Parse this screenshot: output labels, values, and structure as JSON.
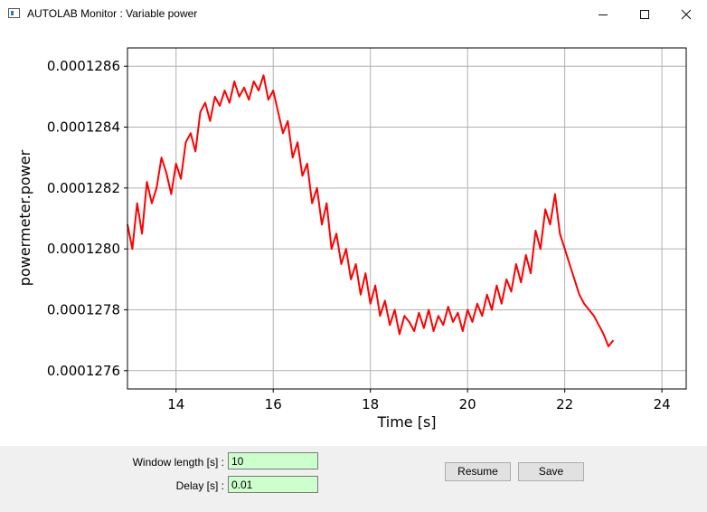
{
  "window": {
    "title": "AUTOLAB Monitor : Variable power",
    "minimize_icon": "minimize-icon",
    "maximize_icon": "maximize-icon",
    "close_icon": "close-icon"
  },
  "chart_data": {
    "type": "line",
    "title": "",
    "xlabel": "Time [s]",
    "ylabel": "powermeter.power",
    "xlim": [
      13,
      24.5
    ],
    "ylim": [
      0.00012754,
      0.00012866
    ],
    "xticks": [
      14,
      16,
      18,
      20,
      22,
      24
    ],
    "xtick_labels": [
      "14",
      "16",
      "18",
      "20",
      "22",
      "24"
    ],
    "yticks": [
      0.0001276,
      0.0001278,
      0.000128,
      0.0001282,
      0.0001284,
      0.0001286
    ],
    "ytick_labels": [
      "0.0001276",
      "0.0001278",
      "0.0001280",
      "0.0001282",
      "0.0001284",
      "0.0001286"
    ],
    "grid": true,
    "line_color": "#ff0000",
    "series": [
      {
        "x": [
          13.0,
          13.1,
          13.2,
          13.3,
          13.4,
          13.5,
          13.6,
          13.7,
          13.8,
          13.9,
          14.0,
          14.1,
          14.2,
          14.3,
          14.4,
          14.5,
          14.6,
          14.7,
          14.8,
          14.9,
          15.0,
          15.1,
          15.2,
          15.3,
          15.4,
          15.5,
          15.6,
          15.7,
          15.8,
          15.9,
          16.0,
          16.1,
          16.2,
          16.3,
          16.4,
          16.5,
          16.6,
          16.7,
          16.8,
          16.9,
          17.0,
          17.1,
          17.2,
          17.3,
          17.4,
          17.5,
          17.6,
          17.7,
          17.8,
          17.9,
          18.0,
          18.1,
          18.2,
          18.3,
          18.4,
          18.5,
          18.6,
          18.7,
          18.8,
          18.9,
          19.0,
          19.1,
          19.2,
          19.3,
          19.4,
          19.5,
          19.6,
          19.7,
          19.8,
          19.9,
          20.0,
          20.1,
          20.2,
          20.3,
          20.4,
          20.5,
          20.6,
          20.7,
          20.8,
          20.9,
          21.0,
          21.1,
          21.2,
          21.3,
          21.4,
          21.5,
          21.6,
          21.7,
          21.8,
          21.9,
          22.0,
          22.1,
          22.2,
          22.3,
          22.4,
          22.5,
          22.6,
          22.7,
          22.8,
          22.9,
          23.0
        ],
        "values": [
          0.00012808,
          0.000128,
          0.00012815,
          0.00012805,
          0.00012822,
          0.00012815,
          0.0001282,
          0.0001283,
          0.00012825,
          0.00012818,
          0.00012828,
          0.00012823,
          0.00012835,
          0.00012838,
          0.00012832,
          0.00012845,
          0.00012848,
          0.00012842,
          0.0001285,
          0.00012847,
          0.00012852,
          0.00012848,
          0.00012855,
          0.0001285,
          0.00012853,
          0.00012849,
          0.00012855,
          0.00012852,
          0.00012857,
          0.00012849,
          0.00012852,
          0.00012845,
          0.00012838,
          0.00012842,
          0.0001283,
          0.00012835,
          0.00012824,
          0.00012828,
          0.00012815,
          0.0001282,
          0.00012808,
          0.00012815,
          0.000128,
          0.00012805,
          0.00012795,
          0.000128,
          0.0001279,
          0.00012795,
          0.00012785,
          0.00012792,
          0.00012782,
          0.00012788,
          0.00012778,
          0.00012783,
          0.00012775,
          0.0001278,
          0.00012772,
          0.00012778,
          0.00012776,
          0.00012773,
          0.00012779,
          0.00012774,
          0.0001278,
          0.00012773,
          0.00012778,
          0.00012775,
          0.00012781,
          0.00012776,
          0.00012779,
          0.00012773,
          0.0001278,
          0.00012776,
          0.00012782,
          0.00012778,
          0.00012785,
          0.0001278,
          0.00012788,
          0.00012782,
          0.0001279,
          0.00012786,
          0.00012795,
          0.00012789,
          0.00012798,
          0.00012792,
          0.00012806,
          0.000128,
          0.00012813,
          0.00012808,
          0.00012818,
          0.00012805,
          0.000128,
          0.00012795,
          0.0001279,
          0.00012785,
          0.00012782,
          0.0001278,
          0.00012778,
          0.00012775,
          0.00012772,
          0.00012768,
          0.0001277
        ]
      }
    ]
  },
  "controls": {
    "window_length_label": "Window length [s] :",
    "window_length_value": "10",
    "delay_label": "Delay [s] :",
    "delay_value": "0.01",
    "resume_label": "Resume",
    "save_label": "Save"
  }
}
